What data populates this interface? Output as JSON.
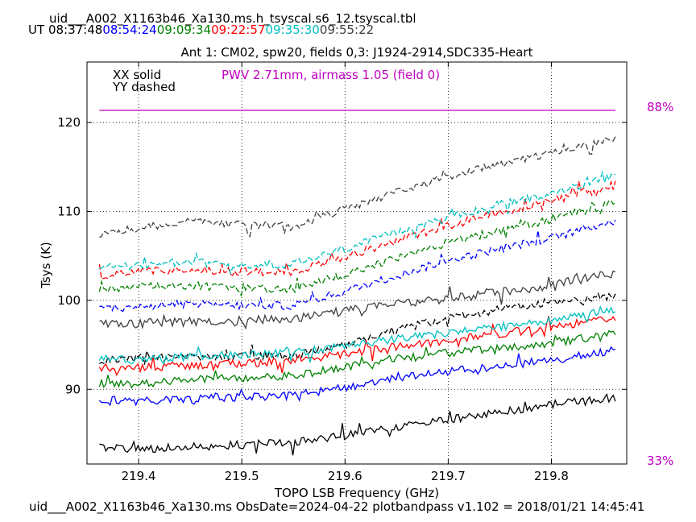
{
  "header": {
    "file_title": "uid___A002_X1163b46_Xa130.ms.h_tsyscal.s6_12.tsyscal.tbl",
    "ut_prefix": "UT",
    "ut_times": [
      {
        "time": "08:37:48",
        "color": "#000000"
      },
      {
        "time": "08:54:24",
        "color": "#0000ff"
      },
      {
        "time": "09:09:34",
        "color": "#008000"
      },
      {
        "time": "09:22:57",
        "color": "#ff0000"
      },
      {
        "time": "09:35:30",
        "color": "#00bfbf"
      },
      {
        "time": "09:55:22",
        "color": "#404040"
      }
    ]
  },
  "footer": {
    "text": "uid___A002_X1163b46_Xa130.ms  ObsDate=2024-04-22   plotbandpass v1.102 = 2018/01/21 14:45:41"
  },
  "chart_data": {
    "type": "line",
    "title": "Ant 1: CM02,  spw20,  fields 0,3: J1924-2914,SDC335-Heart",
    "xlabel": "TOPO LSB Frequency (GHz)",
    "ylabel": "Tsys (K)",
    "xlim": [
      219.35,
      219.873
    ],
    "ylim": [
      81.6,
      126.8
    ],
    "xticks": [
      219.4,
      219.5,
      219.6,
      219.7,
      219.8
    ],
    "yticks": [
      90,
      100,
      110,
      120
    ],
    "grid": true,
    "legend": {
      "xx": "XX solid",
      "yy": "YY dashed",
      "placement": "top-left"
    },
    "annotation": {
      "text": "PWV 2.71mm, airmass 1.05 (field 0)",
      "color": "#bf00bf"
    },
    "atm_transmission": {
      "color": "#bf00bf",
      "top_label": "88%",
      "bottom_label": "33%",
      "level_percent": 88
    },
    "x_start": 219.362,
    "x_end": 219.862,
    "series": [
      {
        "time": "08:37:48",
        "color": "#000000",
        "pol": "XX",
        "noise": 0.45,
        "x": [
          219.362,
          219.4,
          219.45,
          219.5,
          219.55,
          219.6,
          219.65,
          219.7,
          219.75,
          219.8,
          219.862
        ],
        "y": [
          83.5,
          83.3,
          83.5,
          83.8,
          84.0,
          84.8,
          85.8,
          86.6,
          87.4,
          88.3,
          89.1
        ]
      },
      {
        "time": "08:37:48",
        "color": "#000000",
        "pol": "YY",
        "noise": 0.45,
        "x": [
          219.362,
          219.4,
          219.45,
          219.5,
          219.55,
          219.6,
          219.65,
          219.7,
          219.75,
          219.8,
          219.862
        ],
        "y": [
          93.2,
          93.5,
          93.7,
          93.7,
          93.8,
          95.0,
          96.7,
          98.0,
          99.0,
          99.7,
          100.6
        ]
      },
      {
        "time": "08:54:24",
        "color": "#0000ff",
        "pol": "XX",
        "noise": 0.45,
        "x": [
          219.362,
          219.4,
          219.45,
          219.5,
          219.55,
          219.6,
          219.65,
          219.7,
          219.75,
          219.8,
          219.862
        ],
        "y": [
          88.8,
          88.6,
          88.9,
          89.1,
          89.3,
          90.2,
          91.3,
          92.0,
          92.6,
          93.3,
          94.4
        ]
      },
      {
        "time": "08:54:24",
        "color": "#0000ff",
        "pol": "YY",
        "noise": 0.45,
        "x": [
          219.362,
          219.4,
          219.45,
          219.5,
          219.55,
          219.6,
          219.65,
          219.7,
          219.75,
          219.8,
          219.862
        ],
        "y": [
          99.1,
          99.3,
          99.6,
          99.4,
          99.4,
          101.0,
          102.8,
          104.5,
          105.8,
          107.0,
          109.0
        ]
      },
      {
        "time": "09:09:34",
        "color": "#008000",
        "pol": "XX",
        "noise": 0.45,
        "x": [
          219.362,
          219.4,
          219.45,
          219.5,
          219.55,
          219.6,
          219.65,
          219.7,
          219.75,
          219.8,
          219.862
        ],
        "y": [
          90.7,
          90.6,
          91.1,
          91.3,
          91.5,
          92.5,
          93.5,
          94.1,
          94.7,
          95.2,
          96.3
        ]
      },
      {
        "time": "09:09:34",
        "color": "#008000",
        "pol": "YY",
        "noise": 0.45,
        "x": [
          219.362,
          219.4,
          219.45,
          219.5,
          219.55,
          219.6,
          219.65,
          219.7,
          219.75,
          219.8,
          219.862
        ],
        "y": [
          101.1,
          101.5,
          101.7,
          101.3,
          101.3,
          102.9,
          104.8,
          106.5,
          107.8,
          109.1,
          111.0
        ]
      },
      {
        "time": "09:22:57",
        "color": "#ff0000",
        "pol": "XX",
        "noise": 0.45,
        "x": [
          219.362,
          219.4,
          219.45,
          219.5,
          219.55,
          219.6,
          219.65,
          219.7,
          219.75,
          219.8,
          219.862
        ],
        "y": [
          92.4,
          92.4,
          92.7,
          92.9,
          93.2,
          94.0,
          94.8,
          95.5,
          96.2,
          97.0,
          98.0
        ]
      },
      {
        "time": "09:22:57",
        "color": "#ff0000",
        "pol": "YY",
        "noise": 0.45,
        "x": [
          219.362,
          219.4,
          219.45,
          219.5,
          219.55,
          219.6,
          219.65,
          219.7,
          219.75,
          219.8,
          219.862
        ],
        "y": [
          102.8,
          103.2,
          103.5,
          103.2,
          103.2,
          104.9,
          106.6,
          108.4,
          109.8,
          111.2,
          113.1
        ]
      },
      {
        "time": "09:35:30",
        "color": "#00bfbf",
        "pol": "XX",
        "noise": 0.45,
        "x": [
          219.362,
          219.4,
          219.45,
          219.5,
          219.55,
          219.6,
          219.65,
          219.7,
          219.75,
          219.8,
          219.862
        ],
        "y": [
          93.5,
          93.4,
          93.7,
          93.9,
          94.1,
          94.9,
          95.7,
          96.3,
          97.0,
          97.8,
          98.9
        ]
      },
      {
        "time": "09:35:30",
        "color": "#00bfbf",
        "pol": "YY",
        "noise": 0.45,
        "x": [
          219.362,
          219.4,
          219.45,
          219.5,
          219.55,
          219.6,
          219.65,
          219.7,
          219.75,
          219.8,
          219.862
        ],
        "y": [
          103.6,
          104.0,
          104.3,
          104.0,
          104.0,
          105.8,
          107.6,
          109.3,
          110.8,
          112.0,
          114.0
        ]
      },
      {
        "time": "09:55:22",
        "color": "#404040",
        "pol": "XX",
        "noise": 0.5,
        "x": [
          219.362,
          219.4,
          219.45,
          219.5,
          219.55,
          219.6,
          219.65,
          219.7,
          219.75,
          219.8,
          219.862
        ],
        "y": [
          97.4,
          97.4,
          97.6,
          97.8,
          98.0,
          98.8,
          99.6,
          100.2,
          100.9,
          101.7,
          103.1
        ]
      },
      {
        "time": "09:55:22",
        "color": "#404040",
        "pol": "YY",
        "noise": 0.45,
        "x": [
          219.362,
          219.4,
          219.45,
          219.5,
          219.55,
          219.6,
          219.65,
          219.7,
          219.75,
          219.8,
          219.862
        ],
        "y": [
          107.5,
          108.2,
          108.9,
          108.5,
          108.3,
          110.3,
          112.2,
          113.9,
          115.4,
          116.6,
          118.2
        ]
      }
    ]
  }
}
